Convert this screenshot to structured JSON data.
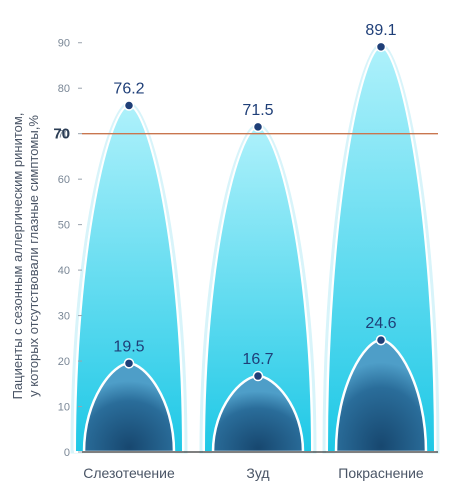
{
  "chart_data": {
    "type": "bar",
    "categories": [
      "Слезотечение",
      "Зуд",
      "Покраснение"
    ],
    "series": [
      {
        "values": [
          76.2,
          71.5,
          89.1
        ]
      },
      {
        "values": [
          19.5,
          16.7,
          24.6
        ]
      }
    ],
    "value_labels": {
      "outer": [
        "76.2",
        "71.5",
        "89.1"
      ],
      "inner": [
        "19.5",
        "16.7",
        "24.6"
      ]
    },
    "ylabel_lines": [
      "Пациенты с сезонным аллергическим ринитом,",
      "у которых отсутствовали глазные симптомы,%"
    ],
    "ylim": [
      0,
      95
    ],
    "yticks": [
      0,
      10,
      20,
      30,
      40,
      50,
      60,
      70,
      80,
      90
    ],
    "ytick_labels": [
      "0",
      "10",
      "20",
      "30",
      "40",
      "50",
      "60",
      "70",
      "80",
      "90"
    ],
    "reference_line": {
      "value": 70,
      "label": "70"
    },
    "grid": false,
    "colors": {
      "outer_top": "#aef1fb",
      "outer_bottom": "#1ec8e6",
      "inner_top": "#1d4f79",
      "inner_bottom": "#3c8fbb",
      "marker": "#1f3f78",
      "reference_line": "#c9764f",
      "axis": "#333333"
    }
  }
}
